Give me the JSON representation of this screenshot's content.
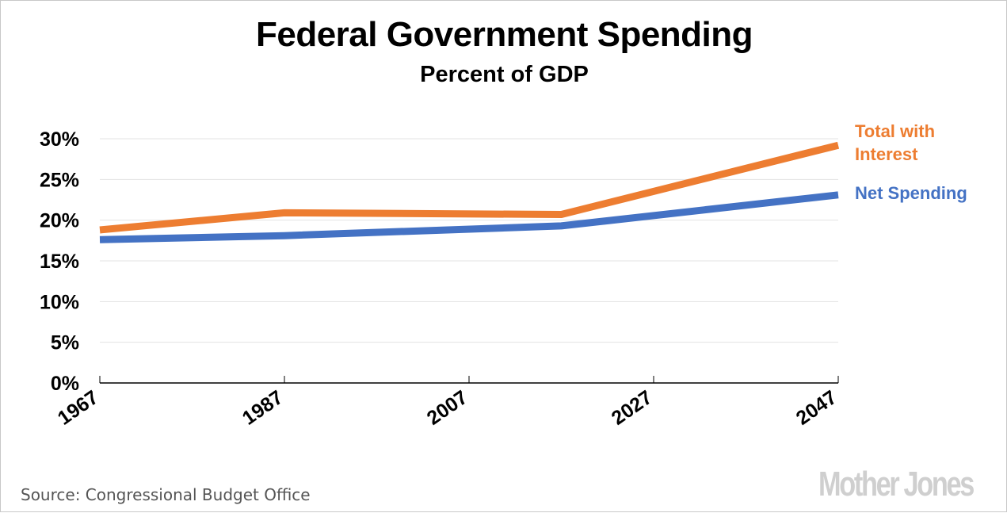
{
  "header": {
    "title": "Federal Government Spending",
    "subtitle": "Percent of GDP"
  },
  "footer": {
    "source": "Source: Congressional Budget Office",
    "logo": "Mother Jones"
  },
  "colors": {
    "total": "#ED7D31",
    "net": "#4472C4",
    "grid": "#e3e3e3",
    "axis": "#000000"
  },
  "chart_data": {
    "type": "line",
    "title": "Federal Government Spending",
    "subtitle": "Percent of GDP",
    "xlabel": "",
    "ylabel": "",
    "xlim": [
      1967,
      2047
    ],
    "ylim": [
      0,
      30
    ],
    "grid": true,
    "legend": "right (inline labels at line ends)",
    "x_ticks": [
      "1967",
      "1987",
      "2007",
      "2027",
      "2047"
    ],
    "x_tick_values": [
      1967,
      1987,
      2007,
      2027,
      2047
    ],
    "y_ticks": [
      "0%",
      "5%",
      "10%",
      "15%",
      "20%",
      "25%",
      "30%"
    ],
    "y_tick_values": [
      0,
      5,
      10,
      15,
      20,
      25,
      30
    ],
    "series": [
      {
        "name": "Total with Interest",
        "label_lines": [
          "Total with",
          "Interest"
        ],
        "color": "#ED7D31",
        "x": [
          1967,
          1987,
          2017,
          2047
        ],
        "values": [
          18.8,
          20.9,
          20.7,
          29.2
        ]
      },
      {
        "name": "Net Spending",
        "label_lines": [
          "Net Spending"
        ],
        "color": "#4472C4",
        "x": [
          1967,
          1987,
          2017,
          2047
        ],
        "values": [
          17.6,
          18.1,
          19.3,
          23.1
        ]
      }
    ],
    "source": "Source: Congressional Budget Office"
  }
}
